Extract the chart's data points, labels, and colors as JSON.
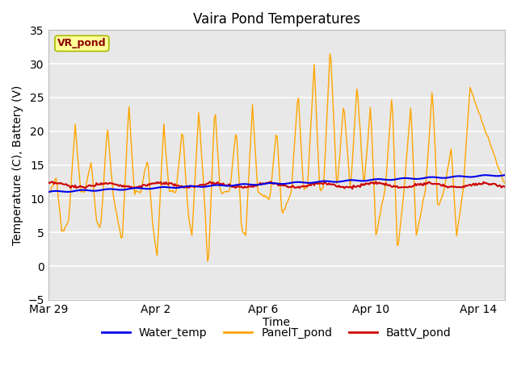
{
  "title": "Vaira Pond Temperatures",
  "xlabel": "Time",
  "ylabel": "Temperature (C), Battery (V)",
  "ylim": [
    -5,
    35
  ],
  "yticks": [
    -5,
    0,
    5,
    10,
    15,
    20,
    25,
    30,
    35
  ],
  "annotation_label": "VR_pond",
  "annotation_label_color": "#8B0000",
  "annotation_box_color": "#FFFF99",
  "annotation_box_edge": "#AABB00",
  "background_color": "#E8E8E8",
  "water_temp_color": "#0000EE",
  "panel_temp_color": "#FFA500",
  "battv_pond_color": "#CC0000",
  "legend_labels": [
    "Water_temp",
    "PanelT_pond",
    "BattV_pond"
  ],
  "x_tick_labels": [
    "Mar 29",
    "Apr 2",
    "Apr 6",
    "Apr 10",
    "Apr 14"
  ],
  "x_tick_positions": [
    0,
    4,
    8,
    12,
    16
  ],
  "xlim": [
    0,
    17
  ]
}
